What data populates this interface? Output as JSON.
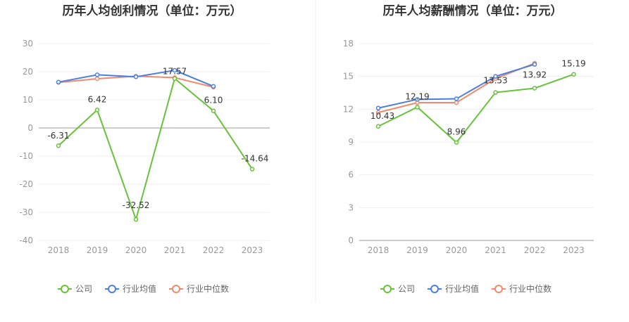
{
  "colors": {
    "company": "#67c23a",
    "avg": "#4a7fe0",
    "median": "#f08a6c"
  },
  "legend": [
    "公司",
    "行业均值",
    "行业中位数"
  ],
  "chart_data": [
    {
      "type": "line",
      "title": "历年人均创利情况（单位：万元）",
      "categories": [
        "2018",
        "2019",
        "2020",
        "2021",
        "2022",
        "2023"
      ],
      "ylim": [
        -40,
        30
      ],
      "yticks": [
        "30",
        "20",
        "10",
        "0",
        "-10",
        "-20",
        "-30",
        "-40"
      ],
      "grid": true,
      "legend_position": "bottom",
      "series": [
        {
          "name": "公司",
          "values": [
            -6.31,
            6.42,
            -32.52,
            17.57,
            6.1,
            -14.64
          ],
          "labels": [
            "-6.31",
            "6.42",
            "-32.52",
            "17.57",
            "6.10",
            "-14.64"
          ]
        },
        {
          "name": "行业均值",
          "values": [
            16.3,
            18.9,
            18.2,
            20.5,
            14.8,
            null
          ]
        },
        {
          "name": "行业中位数",
          "values": [
            16.2,
            17.5,
            18.4,
            17.9,
            14.5,
            null
          ]
        }
      ]
    },
    {
      "type": "line",
      "title": "历年人均薪酬情况（单位：万元）",
      "categories": [
        "2018",
        "2019",
        "2020",
        "2021",
        "2022",
        "2023"
      ],
      "ylim": [
        0,
        18
      ],
      "yticks": [
        "18",
        "15",
        "12",
        "9",
        "6",
        "3",
        "0"
      ],
      "grid": true,
      "legend_position": "bottom",
      "series": [
        {
          "name": "公司",
          "values": [
            10.43,
            12.19,
            8.96,
            13.53,
            13.92,
            15.19
          ],
          "labels": [
            "10.43",
            "12.19",
            "8.96",
            "13.53",
            "13.92",
            "15.19"
          ]
        },
        {
          "name": "行业均值",
          "values": [
            12.1,
            12.9,
            12.95,
            15.0,
            16.1,
            null
          ]
        },
        {
          "name": "行业中位数",
          "values": [
            11.7,
            12.6,
            12.6,
            14.8,
            16.2,
            null
          ]
        }
      ]
    }
  ]
}
